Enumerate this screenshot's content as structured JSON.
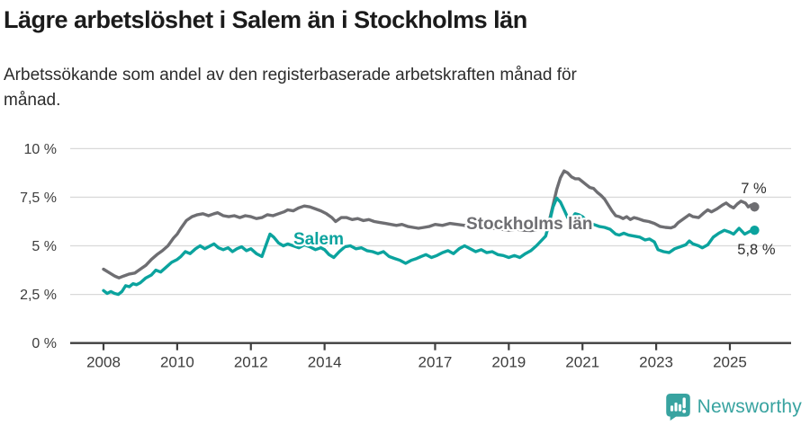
{
  "header": {
    "title": "Lägre arbetslöshet i Salem än i Stockholms län",
    "subtitle": "Arbetssökande som andel av den registerbaserade arbetskraften månad för månad."
  },
  "footer": {
    "brand": "Newsworthy",
    "logo_icon": "bar-chart-speech-bubble-icon"
  },
  "colors": {
    "salem": "#0BA39E",
    "stockholm": "#6E6E72",
    "grid": "#D9D9D9",
    "axis": "#3F3F3F",
    "tick_text": "#3D3D3D",
    "value_label_text": "#2E2E2E",
    "brand_teal": "#38A3A0"
  },
  "chart_data": {
    "type": "line",
    "unit": "%",
    "grid": "horizontal",
    "legend": "inline-labels",
    "ylim": [
      0,
      10.8
    ],
    "xlim": [
      2007.1,
      2026.3
    ],
    "y_ticks": [
      {
        "v": 0,
        "label": "0 %"
      },
      {
        "v": 2.5,
        "label": "2,5 %"
      },
      {
        "v": 5,
        "label": "5 %"
      },
      {
        "v": 7.5,
        "label": "7,5 %"
      },
      {
        "v": 10,
        "label": "10 %"
      }
    ],
    "x_ticks": [
      {
        "v": 2008,
        "label": "2008"
      },
      {
        "v": 2010,
        "label": "2010"
      },
      {
        "v": 2012,
        "label": "2012"
      },
      {
        "v": 2014,
        "label": "2014"
      },
      {
        "v": 2017,
        "label": "2017"
      },
      {
        "v": 2019,
        "label": "2019"
      },
      {
        "v": 2021,
        "label": "2021"
      },
      {
        "v": 2023,
        "label": "2023"
      },
      {
        "v": 2025,
        "label": "2025"
      }
    ],
    "series": [
      {
        "key": "stockholm",
        "name": "Stockholms län",
        "color": "#6E6E72",
        "end_label": "7 %",
        "end_label_side": "above",
        "points": [
          [
            2008.0,
            3.8
          ],
          [
            2008.17,
            3.6
          ],
          [
            2008.3,
            3.45
          ],
          [
            2008.42,
            3.35
          ],
          [
            2008.55,
            3.45
          ],
          [
            2008.7,
            3.55
          ],
          [
            2008.85,
            3.6
          ],
          [
            2009.0,
            3.8
          ],
          [
            2009.15,
            4.0
          ],
          [
            2009.3,
            4.3
          ],
          [
            2009.45,
            4.55
          ],
          [
            2009.6,
            4.75
          ],
          [
            2009.75,
            5.0
          ],
          [
            2009.9,
            5.4
          ],
          [
            2010.0,
            5.6
          ],
          [
            2010.1,
            5.9
          ],
          [
            2010.25,
            6.3
          ],
          [
            2010.4,
            6.5
          ],
          [
            2010.55,
            6.6
          ],
          [
            2010.7,
            6.65
          ],
          [
            2010.85,
            6.55
          ],
          [
            2011.0,
            6.65
          ],
          [
            2011.1,
            6.7
          ],
          [
            2011.25,
            6.55
          ],
          [
            2011.4,
            6.5
          ],
          [
            2011.55,
            6.55
          ],
          [
            2011.7,
            6.45
          ],
          [
            2011.85,
            6.55
          ],
          [
            2012.0,
            6.5
          ],
          [
            2012.15,
            6.4
          ],
          [
            2012.3,
            6.45
          ],
          [
            2012.45,
            6.6
          ],
          [
            2012.6,
            6.55
          ],
          [
            2012.75,
            6.65
          ],
          [
            2012.9,
            6.75
          ],
          [
            2013.0,
            6.85
          ],
          [
            2013.15,
            6.8
          ],
          [
            2013.3,
            6.95
          ],
          [
            2013.45,
            7.05
          ],
          [
            2013.6,
            7.0
          ],
          [
            2013.75,
            6.9
          ],
          [
            2013.9,
            6.8
          ],
          [
            2014.05,
            6.65
          ],
          [
            2014.2,
            6.45
          ],
          [
            2014.3,
            6.25
          ],
          [
            2014.45,
            6.45
          ],
          [
            2014.6,
            6.45
          ],
          [
            2014.75,
            6.35
          ],
          [
            2014.9,
            6.4
          ],
          [
            2015.05,
            6.3
          ],
          [
            2015.2,
            6.35
          ],
          [
            2015.35,
            6.25
          ],
          [
            2015.5,
            6.2
          ],
          [
            2015.65,
            6.15
          ],
          [
            2015.8,
            6.1
          ],
          [
            2015.95,
            6.05
          ],
          [
            2016.1,
            6.1
          ],
          [
            2016.25,
            6.0
          ],
          [
            2016.4,
            5.95
          ],
          [
            2016.55,
            5.9
          ],
          [
            2016.7,
            5.95
          ],
          [
            2016.85,
            6.0
          ],
          [
            2017.0,
            6.1
          ],
          [
            2017.2,
            6.05
          ],
          [
            2017.4,
            6.15
          ],
          [
            2017.6,
            6.1
          ],
          [
            2017.8,
            6.05
          ],
          [
            2018.0,
            5.95
          ],
          [
            2018.2,
            5.9
          ],
          [
            2018.4,
            5.95
          ],
          [
            2018.6,
            5.9
          ],
          [
            2018.8,
            5.85
          ],
          [
            2019.0,
            5.8
          ],
          [
            2019.2,
            5.85
          ],
          [
            2019.4,
            5.8
          ],
          [
            2019.6,
            5.78
          ],
          [
            2019.8,
            5.85
          ],
          [
            2020.0,
            5.95
          ],
          [
            2020.1,
            6.3
          ],
          [
            2020.2,
            7.1
          ],
          [
            2020.3,
            7.9
          ],
          [
            2020.4,
            8.5
          ],
          [
            2020.5,
            8.85
          ],
          [
            2020.6,
            8.75
          ],
          [
            2020.7,
            8.55
          ],
          [
            2020.8,
            8.45
          ],
          [
            2020.9,
            8.45
          ],
          [
            2021.0,
            8.3
          ],
          [
            2021.1,
            8.15
          ],
          [
            2021.2,
            8.0
          ],
          [
            2021.3,
            7.95
          ],
          [
            2021.4,
            7.75
          ],
          [
            2021.5,
            7.6
          ],
          [
            2021.6,
            7.4
          ],
          [
            2021.7,
            7.1
          ],
          [
            2021.8,
            6.8
          ],
          [
            2021.9,
            6.55
          ],
          [
            2022.0,
            6.5
          ],
          [
            2022.1,
            6.4
          ],
          [
            2022.2,
            6.5
          ],
          [
            2022.3,
            6.35
          ],
          [
            2022.4,
            6.45
          ],
          [
            2022.5,
            6.4
          ],
          [
            2022.65,
            6.3
          ],
          [
            2022.8,
            6.25
          ],
          [
            2022.95,
            6.15
          ],
          [
            2023.1,
            6.0
          ],
          [
            2023.25,
            5.95
          ],
          [
            2023.4,
            5.92
          ],
          [
            2023.5,
            6.0
          ],
          [
            2023.6,
            6.2
          ],
          [
            2023.75,
            6.4
          ],
          [
            2023.9,
            6.6
          ],
          [
            2024.0,
            6.5
          ],
          [
            2024.15,
            6.45
          ],
          [
            2024.3,
            6.7
          ],
          [
            2024.4,
            6.85
          ],
          [
            2024.5,
            6.75
          ],
          [
            2024.65,
            6.9
          ],
          [
            2024.8,
            7.1
          ],
          [
            2024.9,
            7.2
          ],
          [
            2025.0,
            7.05
          ],
          [
            2025.1,
            6.95
          ],
          [
            2025.2,
            7.15
          ],
          [
            2025.3,
            7.3
          ],
          [
            2025.42,
            7.2
          ],
          [
            2025.5,
            7.0
          ],
          [
            2025.58,
            7.1
          ],
          [
            2025.67,
            7.0
          ]
        ]
      },
      {
        "key": "salem",
        "name": "Salem",
        "color": "#0BA39E",
        "end_label": "5,8 %",
        "end_label_side": "below",
        "points": [
          [
            2008.0,
            2.7
          ],
          [
            2008.1,
            2.55
          ],
          [
            2008.2,
            2.65
          ],
          [
            2008.3,
            2.55
          ],
          [
            2008.4,
            2.5
          ],
          [
            2008.5,
            2.65
          ],
          [
            2008.6,
            2.95
          ],
          [
            2008.7,
            2.9
          ],
          [
            2008.8,
            3.05
          ],
          [
            2008.9,
            3.0
          ],
          [
            2009.0,
            3.1
          ],
          [
            2009.15,
            3.35
          ],
          [
            2009.3,
            3.5
          ],
          [
            2009.42,
            3.75
          ],
          [
            2009.55,
            3.65
          ],
          [
            2009.7,
            3.9
          ],
          [
            2009.85,
            4.15
          ],
          [
            2010.0,
            4.3
          ],
          [
            2010.1,
            4.45
          ],
          [
            2010.22,
            4.7
          ],
          [
            2010.35,
            4.6
          ],
          [
            2010.5,
            4.85
          ],
          [
            2010.62,
            5.0
          ],
          [
            2010.75,
            4.85
          ],
          [
            2010.9,
            5.0
          ],
          [
            2011.0,
            5.1
          ],
          [
            2011.12,
            4.9
          ],
          [
            2011.25,
            4.8
          ],
          [
            2011.38,
            4.9
          ],
          [
            2011.5,
            4.7
          ],
          [
            2011.62,
            4.85
          ],
          [
            2011.75,
            4.95
          ],
          [
            2011.88,
            4.75
          ],
          [
            2012.0,
            4.85
          ],
          [
            2012.15,
            4.6
          ],
          [
            2012.3,
            4.45
          ],
          [
            2012.42,
            5.1
          ],
          [
            2012.52,
            5.6
          ],
          [
            2012.62,
            5.45
          ],
          [
            2012.75,
            5.15
          ],
          [
            2012.88,
            5.0
          ],
          [
            2013.0,
            5.1
          ],
          [
            2013.15,
            5.0
          ],
          [
            2013.3,
            4.9
          ],
          [
            2013.45,
            5.05
          ],
          [
            2013.6,
            4.95
          ],
          [
            2013.75,
            4.8
          ],
          [
            2013.9,
            4.9
          ],
          [
            2014.0,
            4.8
          ],
          [
            2014.12,
            4.55
          ],
          [
            2014.25,
            4.4
          ],
          [
            2014.4,
            4.7
          ],
          [
            2014.55,
            4.95
          ],
          [
            2014.7,
            5.0
          ],
          [
            2014.85,
            4.85
          ],
          [
            2015.0,
            4.9
          ],
          [
            2015.15,
            4.75
          ],
          [
            2015.3,
            4.7
          ],
          [
            2015.45,
            4.6
          ],
          [
            2015.6,
            4.7
          ],
          [
            2015.75,
            4.45
          ],
          [
            2015.9,
            4.35
          ],
          [
            2016.05,
            4.25
          ],
          [
            2016.2,
            4.1
          ],
          [
            2016.35,
            4.25
          ],
          [
            2016.5,
            4.35
          ],
          [
            2016.62,
            4.45
          ],
          [
            2016.75,
            4.55
          ],
          [
            2016.9,
            4.4
          ],
          [
            2017.05,
            4.5
          ],
          [
            2017.2,
            4.65
          ],
          [
            2017.35,
            4.75
          ],
          [
            2017.5,
            4.6
          ],
          [
            2017.65,
            4.85
          ],
          [
            2017.8,
            5.0
          ],
          [
            2017.95,
            4.85
          ],
          [
            2018.1,
            4.7
          ],
          [
            2018.25,
            4.8
          ],
          [
            2018.4,
            4.65
          ],
          [
            2018.55,
            4.7
          ],
          [
            2018.7,
            4.55
          ],
          [
            2018.85,
            4.5
          ],
          [
            2019.0,
            4.4
          ],
          [
            2019.15,
            4.5
          ],
          [
            2019.3,
            4.4
          ],
          [
            2019.45,
            4.6
          ],
          [
            2019.6,
            4.75
          ],
          [
            2019.75,
            5.0
          ],
          [
            2019.9,
            5.3
          ],
          [
            2020.0,
            5.5
          ],
          [
            2020.1,
            6.2
          ],
          [
            2020.2,
            7.0
          ],
          [
            2020.3,
            7.45
          ],
          [
            2020.4,
            7.25
          ],
          [
            2020.5,
            6.85
          ],
          [
            2020.6,
            6.45
          ],
          [
            2020.7,
            6.35
          ],
          [
            2020.8,
            6.65
          ],
          [
            2020.9,
            6.6
          ],
          [
            2021.0,
            6.5
          ],
          [
            2021.1,
            6.3
          ],
          [
            2021.2,
            6.15
          ],
          [
            2021.3,
            6.1
          ],
          [
            2021.45,
            6.0
          ],
          [
            2021.6,
            5.95
          ],
          [
            2021.75,
            5.85
          ],
          [
            2021.9,
            5.6
          ],
          [
            2022.0,
            5.55
          ],
          [
            2022.12,
            5.65
          ],
          [
            2022.25,
            5.55
          ],
          [
            2022.4,
            5.5
          ],
          [
            2022.55,
            5.45
          ],
          [
            2022.7,
            5.3
          ],
          [
            2022.82,
            5.35
          ],
          [
            2022.95,
            5.2
          ],
          [
            2023.05,
            4.8
          ],
          [
            2023.2,
            4.7
          ],
          [
            2023.35,
            4.65
          ],
          [
            2023.5,
            4.85
          ],
          [
            2023.65,
            4.95
          ],
          [
            2023.8,
            5.05
          ],
          [
            2023.9,
            5.25
          ],
          [
            2024.0,
            5.1
          ],
          [
            2024.15,
            5.0
          ],
          [
            2024.25,
            4.9
          ],
          [
            2024.4,
            5.05
          ],
          [
            2024.55,
            5.45
          ],
          [
            2024.7,
            5.65
          ],
          [
            2024.85,
            5.8
          ],
          [
            2025.0,
            5.7
          ],
          [
            2025.1,
            5.6
          ],
          [
            2025.25,
            5.9
          ],
          [
            2025.4,
            5.6
          ],
          [
            2025.55,
            5.75
          ],
          [
            2025.67,
            5.8
          ]
        ]
      }
    ]
  }
}
